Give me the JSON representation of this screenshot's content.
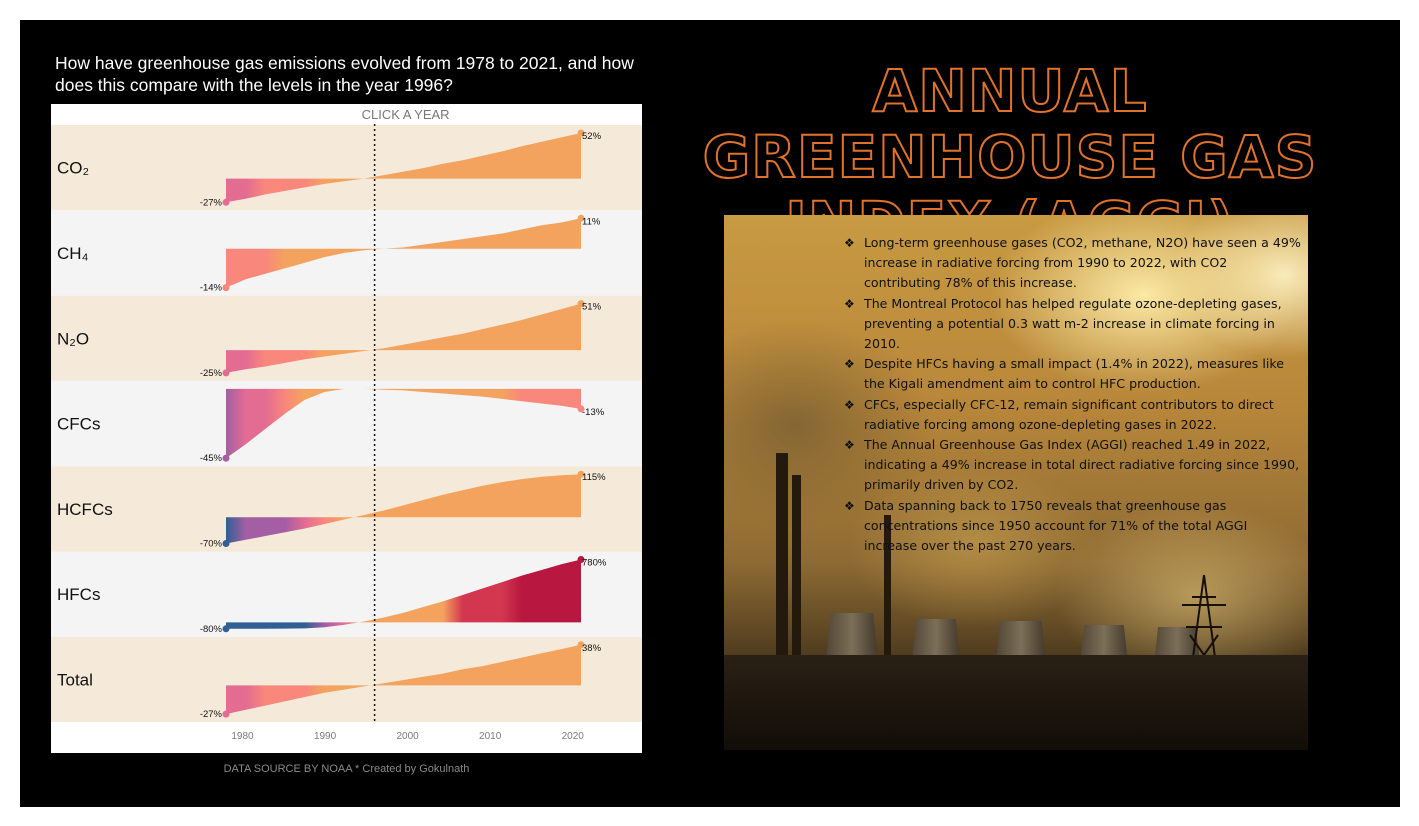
{
  "question": "How have greenhouse gas emissions evolved from 1978 to 2021, and how does this compare with the levels in the year 1996?",
  "click_label": "CLICK A YEAR",
  "footer": "DATA SOURCE BY NOAA * Created by Gokulnath",
  "title": "ANNUAL GREENHOUSE GAS INDEX (AGGI)",
  "notes": [
    "Long-term greenhouse gases (CO2, methane, N2O) have seen a 49% increase in radiative forcing from 1990 to 2022, with CO2 contributing 78% of this increase.",
    "The Montreal Protocol has helped regulate ozone-depleting gases, preventing a potential 0.3 watt m-2 increase in climate forcing in 2010.",
    "Despite HFCs having a small impact (1.4% in 2022), measures like the Kigali amendment aim to control HFC production.",
    "CFCs, especially CFC-12, remain significant contributors to direct radiative forcing among ozone-depleting gases in 2022.",
    "The Annual Greenhouse Gas Index (AGGI) reached 1.49 in 2022, indicating a 49% increase in total direct radiative forcing since 1990, primarily driven by CO2.",
    "Data spanning back to 1750 reveals that greenhouse gas concentrations since 1950 account for 71% of the total AGGI increase over the past 270 years."
  ],
  "bullet_glyph": "❖",
  "colors": {
    "row_bg_a": "#f5ead9",
    "row_bg_b": "#f4f4f4",
    "title_stroke": "#e0722a",
    "scale": [
      "#2f5f94",
      "#a45ea3",
      "#e36c92",
      "#f9877b",
      "#f4a35f",
      "#f6b452",
      "#d3364f",
      "#b8173f"
    ]
  },
  "chart_data": {
    "type": "area",
    "x_start": 1978,
    "x_end": 2021,
    "reference_year": 1996,
    "x_ticks": [
      1980,
      1990,
      2000,
      2010,
      2020
    ],
    "rows": [
      {
        "name": "CO₂",
        "start": -27,
        "end": 52,
        "start_label": "-27%",
        "end_label": "52%",
        "values": [
          -27,
          -23,
          -18,
          -14,
          -10,
          -6,
          -3,
          0,
          4,
          8,
          12,
          17,
          21,
          26,
          31,
          37,
          42,
          47,
          52
        ]
      },
      {
        "name": "CH₄",
        "start": -14,
        "end": 11,
        "start_label": "-14%",
        "end_label": "11%",
        "values": [
          -14,
          -11,
          -9,
          -7,
          -5,
          -3,
          -1.5,
          -0.5,
          0,
          0.5,
          1.5,
          2.5,
          3.5,
          4.5,
          5.5,
          7,
          8.5,
          9.5,
          11
        ]
      },
      {
        "name": "N₂O",
        "start": -25,
        "end": 51,
        "start_label": "-25%",
        "end_label": "51%",
        "values": [
          -25,
          -21,
          -18,
          -14,
          -10,
          -7,
          -4,
          -1,
          2,
          6,
          10,
          14,
          18,
          23,
          28,
          33,
          39,
          45,
          51
        ]
      },
      {
        "name": "CFCs",
        "start": -45,
        "end": -13,
        "start_label": "-45%",
        "end_label": "-13%",
        "values": [
          -45,
          -36,
          -26,
          -16,
          -7,
          -2,
          0,
          0,
          -0.5,
          -1,
          -2,
          -3,
          -4,
          -5,
          -6.5,
          -8,
          -9.5,
          -11,
          -13
        ]
      },
      {
        "name": "HCFCs",
        "start": -70,
        "end": 115,
        "start_label": "-70%",
        "end_label": "115%",
        "values": [
          -70,
          -60,
          -50,
          -40,
          -30,
          -18,
          -6,
          6,
          18,
          32,
          46,
          60,
          72,
          84,
          94,
          102,
          108,
          112,
          115
        ]
      },
      {
        "name": "HFCs",
        "start": -80,
        "end": 780,
        "start_label": "-80%",
        "end_label": "780%",
        "values": [
          -80,
          -80,
          -79,
          -78,
          -75,
          -60,
          -30,
          10,
          60,
          120,
          190,
          260,
          340,
          420,
          500,
          580,
          650,
          720,
          780
        ]
      },
      {
        "name": "Total",
        "start": -27,
        "end": 38,
        "start_label": "-27%",
        "end_label": "38%",
        "values": [
          -27,
          -23,
          -19,
          -15,
          -11,
          -7,
          -4,
          -1,
          2,
          5,
          8,
          11,
          15,
          18,
          22,
          26,
          30,
          34,
          38
        ]
      }
    ]
  }
}
